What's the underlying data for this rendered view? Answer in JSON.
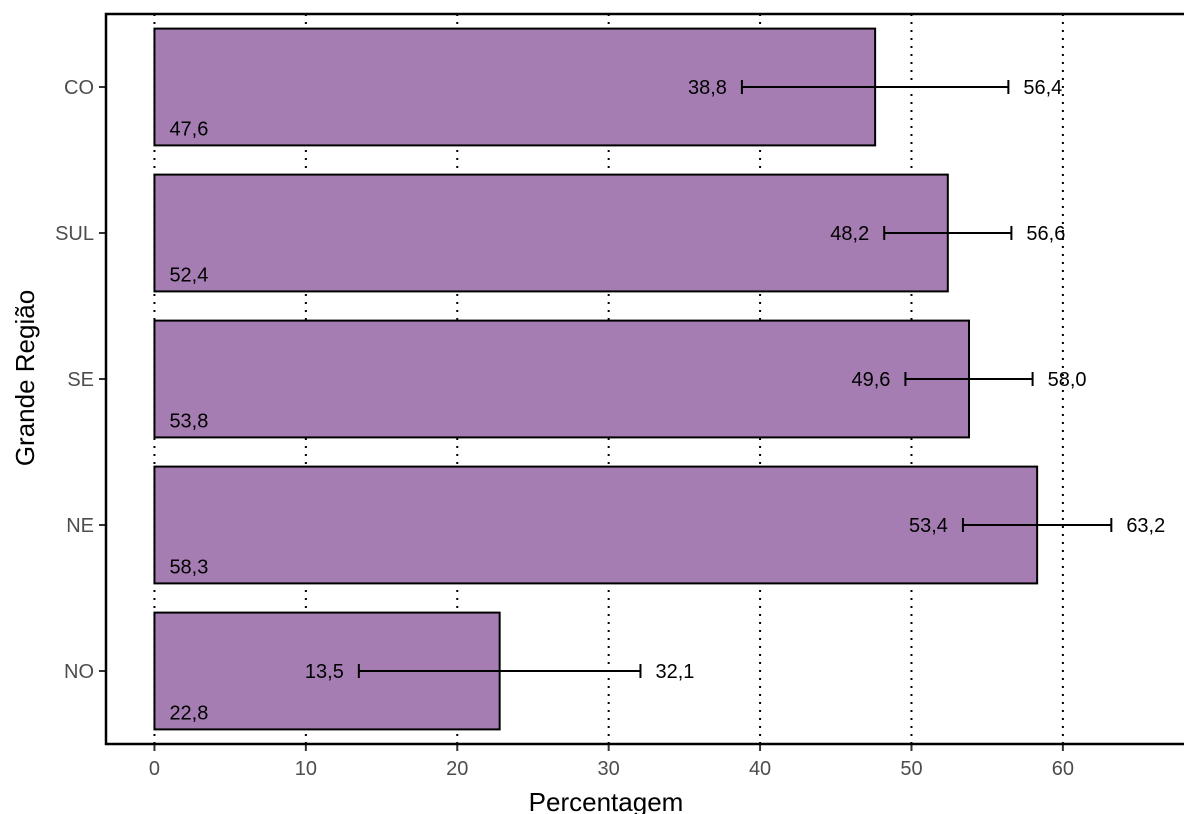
{
  "chart_data": {
    "type": "bar",
    "orientation": "horizontal",
    "xlabel": "Percentagem",
    "ylabel": "Grande Região",
    "xlim": [
      -3.2,
      68
    ],
    "x_ticks": [
      0,
      10,
      20,
      30,
      40,
      50,
      60
    ],
    "x_tick_labels": [
      "0",
      "10",
      "20",
      "30",
      "40",
      "50",
      "60"
    ],
    "grid": "vertical dotted",
    "legend": "none",
    "categories": [
      "CO",
      "SUL",
      "SE",
      "NE",
      "NO"
    ],
    "values": [
      47.6,
      52.4,
      53.8,
      58.3,
      22.8
    ],
    "value_labels": [
      "47,6",
      "52,4",
      "53,8",
      "58,3",
      "22,8"
    ],
    "ci_lower": [
      38.8,
      48.2,
      49.6,
      53.4,
      13.5
    ],
    "ci_lower_labels": [
      "38,8",
      "48,2",
      "49,6",
      "53,4",
      "13,5"
    ],
    "ci_upper": [
      56.4,
      56.6,
      58.0,
      63.2,
      32.1
    ],
    "ci_upper_labels": [
      "56,4",
      "56,6",
      "58,0",
      "63,2",
      "32,1"
    ],
    "colors": {
      "bar_fill": "#a57db2",
      "bar_stroke": "#000000",
      "grid": "#000000",
      "axis": "#000000",
      "tick_text": "#4d4d4d"
    }
  }
}
